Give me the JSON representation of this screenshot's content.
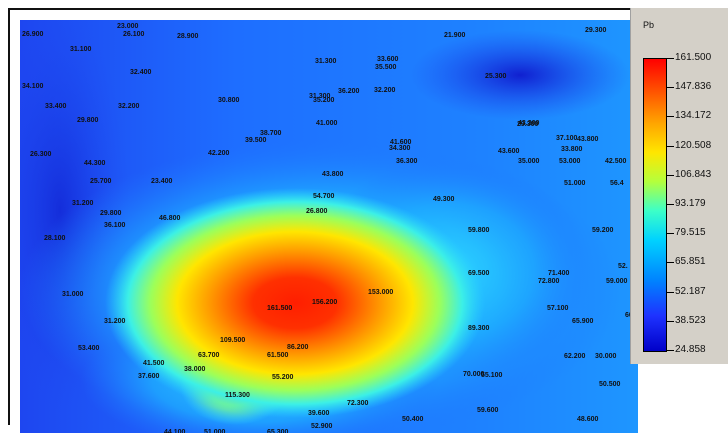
{
  "legend": {
    "title": "Pb",
    "ticks": [
      "161.500",
      "147.836",
      "134.172",
      "120.508",
      "106.843",
      "93.179",
      "79.515",
      "65.851",
      "52.187",
      "38.523",
      "24.858"
    ],
    "colors": [
      "#ff0000",
      "#ff5a00",
      "#ffa500",
      "#ffe600",
      "#b4ff3c",
      "#3cffc8",
      "#00d2ff",
      "#0082ff",
      "#1e32ff",
      "#0000c8"
    ]
  },
  "map": {
    "samples": [
      {
        "label": "26.900"
      },
      {
        "label": "23.000"
      },
      {
        "label": "26.100"
      },
      {
        "label": "28.900"
      },
      {
        "label": "31.100"
      },
      {
        "label": "32.400"
      },
      {
        "label": "34.100"
      },
      {
        "label": "33.400"
      },
      {
        "label": "32.200"
      },
      {
        "label": "29.800"
      },
      {
        "label": "30.800"
      },
      {
        "label": "31.300"
      },
      {
        "label": "33.600"
      },
      {
        "label": "35.500"
      },
      {
        "label": "31.300"
      },
      {
        "label": "32.200"
      },
      {
        "label": "35.200"
      },
      {
        "label": "36.200"
      },
      {
        "label": "21.900"
      },
      {
        "label": "29.300"
      },
      {
        "label": "25.300"
      },
      {
        "label": "29.300"
      },
      {
        "label": "38.700"
      },
      {
        "label": "39.500"
      },
      {
        "label": "41.000"
      },
      {
        "label": "42.200"
      },
      {
        "label": "44.300"
      },
      {
        "label": "26.300"
      },
      {
        "label": "41.600"
      },
      {
        "label": "34.300"
      },
      {
        "label": "36.300"
      },
      {
        "label": "43.300"
      },
      {
        "label": "37.100"
      },
      {
        "label": "43.800"
      },
      {
        "label": "33.800"
      },
      {
        "label": "43.600"
      },
      {
        "label": "35.000"
      },
      {
        "label": "53.000"
      },
      {
        "label": "42.500"
      },
      {
        "label": "25.700"
      },
      {
        "label": "23.400"
      },
      {
        "label": "43.800"
      },
      {
        "label": "51.000"
      },
      {
        "label": "56.4"
      },
      {
        "label": "31.200"
      },
      {
        "label": "54.700"
      },
      {
        "label": "49.300"
      },
      {
        "label": "26.800"
      },
      {
        "label": "29.800"
      },
      {
        "label": "36.100"
      },
      {
        "label": "46.800"
      },
      {
        "label": "28.100"
      },
      {
        "label": "59.800"
      },
      {
        "label": "59.200"
      },
      {
        "label": "31.000"
      },
      {
        "label": "69.500"
      },
      {
        "label": "71.400"
      },
      {
        "label": "72.800"
      },
      {
        "label": "52."
      },
      {
        "label": "59.000"
      },
      {
        "label": "161.500"
      },
      {
        "label": "156.200"
      },
      {
        "label": "153.000"
      },
      {
        "label": "57.100"
      },
      {
        "label": "31.200"
      },
      {
        "label": "89.300"
      },
      {
        "label": "65.900"
      },
      {
        "label": "60.9"
      },
      {
        "label": "53.400"
      },
      {
        "label": "109.500"
      },
      {
        "label": "63.700"
      },
      {
        "label": "86.200"
      },
      {
        "label": "61.500"
      },
      {
        "label": "41.500"
      },
      {
        "label": "38.000"
      },
      {
        "label": "37.600"
      },
      {
        "label": "62.200"
      },
      {
        "label": "30.000"
      },
      {
        "label": "55.200"
      },
      {
        "label": "70.000"
      },
      {
        "label": "55.100"
      },
      {
        "label": "50.500"
      },
      {
        "label": "115.300"
      },
      {
        "label": "72.300"
      },
      {
        "label": "39.600"
      },
      {
        "label": "59.600"
      },
      {
        "label": "50.400"
      },
      {
        "label": "52.900"
      },
      {
        "label": "44.100"
      },
      {
        "label": "51.000"
      },
      {
        "label": "65.300"
      },
      {
        "label": "48.600"
      }
    ]
  }
}
